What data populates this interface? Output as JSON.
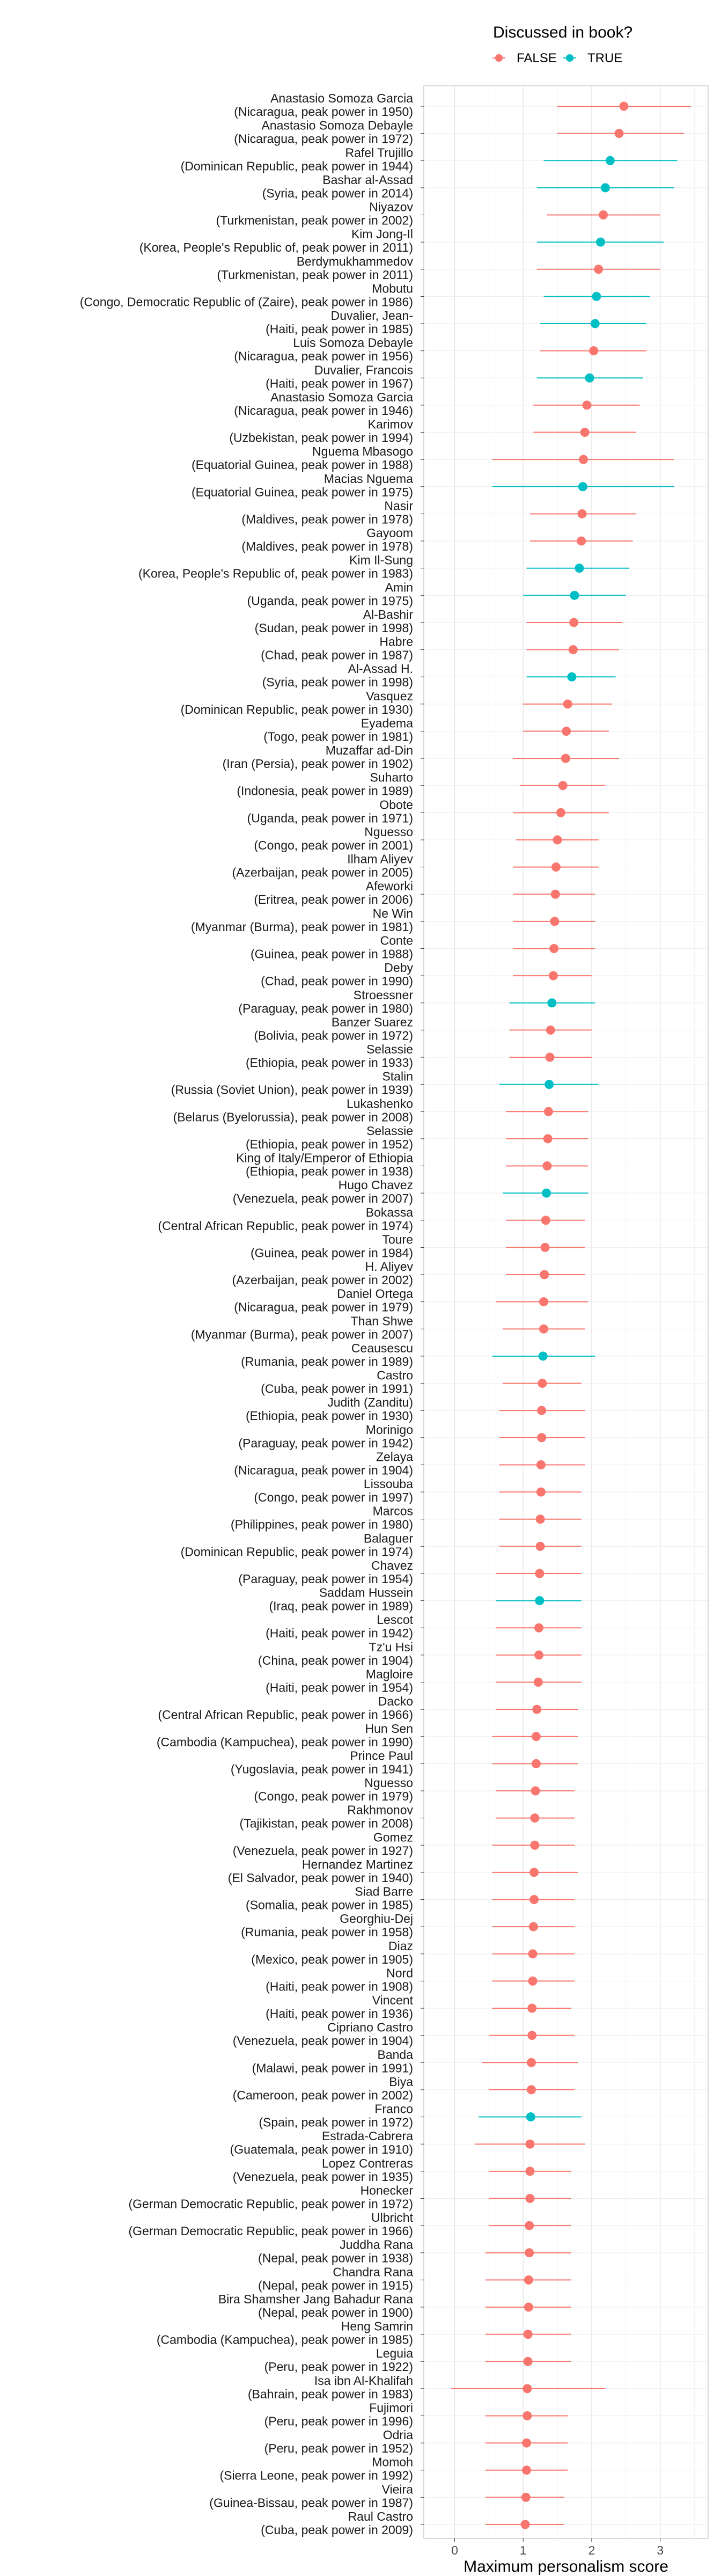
{
  "chart_data": {
    "type": "scatter",
    "xlabel": "Maximum personalism score",
    "ylabel": "",
    "xlim": [
      -0.45,
      3.7
    ],
    "xticks": [
      0,
      1,
      2,
      3
    ],
    "grid": true,
    "legend": {
      "title": "Discussed in book?",
      "position": "top",
      "entries": [
        {
          "name": "FALSE",
          "color": "#F8766D"
        },
        {
          "name": "TRUE",
          "color": "#00BFC4"
        }
      ]
    },
    "colors": {
      "FALSE": "#F8766D",
      "TRUE": "#00BFC4"
    },
    "points": [
      {
        "name": "Anastasio Somoza Garcia",
        "detail": "(Nicaragua, peak power in 1950)",
        "value": 2.47,
        "low": 1.5,
        "high": 3.45,
        "discussed": false
      },
      {
        "name": "Anastasio Somoza Debayle",
        "detail": "(Nicaragua, peak power in 1972)",
        "value": 2.4,
        "low": 1.5,
        "high": 3.35,
        "discussed": false
      },
      {
        "name": "Rafel Trujillo",
        "detail": "(Dominican Republic, peak power in 1944)",
        "value": 2.27,
        "low": 1.3,
        "high": 3.25,
        "discussed": true
      },
      {
        "name": "Bashar al-Assad",
        "detail": "(Syria, peak power in 2014)",
        "value": 2.2,
        "low": 1.2,
        "high": 3.2,
        "discussed": true
      },
      {
        "name": "Niyazov",
        "detail": "(Turkmenistan, peak power in 2002)",
        "value": 2.17,
        "low": 1.35,
        "high": 3.0,
        "discussed": false
      },
      {
        "name": "Kim Jong-Il",
        "detail": "(Korea, People's Republic of, peak power in 2011)",
        "value": 2.13,
        "low": 1.2,
        "high": 3.05,
        "discussed": true
      },
      {
        "name": "Berdymukhammedov",
        "detail": "(Turkmenistan, peak power in 2011)",
        "value": 2.1,
        "low": 1.2,
        "high": 3.0,
        "discussed": false
      },
      {
        "name": "Mobutu",
        "detail": "(Congo, Democratic Republic of (Zaire), peak power in 1986)",
        "value": 2.07,
        "low": 1.3,
        "high": 2.85,
        "discussed": true
      },
      {
        "name": "Duvalier, Jean-",
        "detail": "(Haiti, peak power in 1985)",
        "value": 2.05,
        "low": 1.25,
        "high": 2.8,
        "discussed": true
      },
      {
        "name": "Luis Somoza Debayle",
        "detail": "(Nicaragua, peak power in 1956)",
        "value": 2.03,
        "low": 1.25,
        "high": 2.8,
        "discussed": false
      },
      {
        "name": "Duvalier, Francois",
        "detail": "(Haiti, peak power in 1967)",
        "value": 1.97,
        "low": 1.2,
        "high": 2.75,
        "discussed": true
      },
      {
        "name": "Anastasio Somoza Garcia",
        "detail": "(Nicaragua, peak power in 1946)",
        "value": 1.93,
        "low": 1.15,
        "high": 2.7,
        "discussed": false
      },
      {
        "name": "Karimov",
        "detail": "(Uzbekistan, peak power in 1994)",
        "value": 1.9,
        "low": 1.15,
        "high": 2.65,
        "discussed": false
      },
      {
        "name": "Nguema Mbasogo",
        "detail": "(Equatorial Guinea, peak power in 1988)",
        "value": 1.88,
        "low": 0.55,
        "high": 3.2,
        "discussed": false
      },
      {
        "name": "Macias Nguema",
        "detail": "(Equatorial Guinea, peak power in 1975)",
        "value": 1.87,
        "low": 0.55,
        "high": 3.2,
        "discussed": true
      },
      {
        "name": "Nasir",
        "detail": "(Maldives, peak power in 1978)",
        "value": 1.86,
        "low": 1.1,
        "high": 2.65,
        "discussed": false
      },
      {
        "name": "Gayoom",
        "detail": "(Maldives, peak power in 1978)",
        "value": 1.85,
        "low": 1.1,
        "high": 2.6,
        "discussed": false
      },
      {
        "name": "Kim Il-Sung",
        "detail": "(Korea, People's Republic of, peak power in 1983)",
        "value": 1.82,
        "low": 1.05,
        "high": 2.55,
        "discussed": true
      },
      {
        "name": "Amin",
        "detail": "(Uganda, peak power in 1975)",
        "value": 1.75,
        "low": 1.0,
        "high": 2.5,
        "discussed": true
      },
      {
        "name": "Al-Bashir",
        "detail": "(Sudan, peak power in 1998)",
        "value": 1.74,
        "low": 1.05,
        "high": 2.45,
        "discussed": false
      },
      {
        "name": "Habre",
        "detail": "(Chad, peak power in 1987)",
        "value": 1.73,
        "low": 1.05,
        "high": 2.4,
        "discussed": false
      },
      {
        "name": "Al-Assad H.",
        "detail": "(Syria, peak power in 1998)",
        "value": 1.71,
        "low": 1.05,
        "high": 2.35,
        "discussed": true
      },
      {
        "name": "Vasquez",
        "detail": "(Dominican Republic, peak power in 1930)",
        "value": 1.65,
        "low": 1.0,
        "high": 2.3,
        "discussed": false
      },
      {
        "name": "Eyadema",
        "detail": "(Togo, peak power in 1981)",
        "value": 1.63,
        "low": 1.0,
        "high": 2.25,
        "discussed": false
      },
      {
        "name": "Muzaffar ad-Din",
        "detail": "(Iran (Persia), peak power in 1902)",
        "value": 1.62,
        "low": 0.85,
        "high": 2.4,
        "discussed": false
      },
      {
        "name": "Suharto",
        "detail": "(Indonesia, peak power in 1989)",
        "value": 1.58,
        "low": 0.95,
        "high": 2.2,
        "discussed": false
      },
      {
        "name": "Obote",
        "detail": "(Uganda, peak power in 1971)",
        "value": 1.55,
        "low": 0.85,
        "high": 2.25,
        "discussed": false
      },
      {
        "name": "Nguesso",
        "detail": "(Congo, peak power in 2001)",
        "value": 1.5,
        "low": 0.9,
        "high": 2.1,
        "discussed": false
      },
      {
        "name": "Ilham Aliyev",
        "detail": "(Azerbaijan, peak power in 2005)",
        "value": 1.48,
        "low": 0.85,
        "high": 2.1,
        "discussed": false
      },
      {
        "name": "Afeworki",
        "detail": "(Eritrea, peak power in 2006)",
        "value": 1.47,
        "low": 0.85,
        "high": 2.05,
        "discussed": false
      },
      {
        "name": "Ne Win",
        "detail": "(Myanmar (Burma), peak power in 1981)",
        "value": 1.46,
        "low": 0.85,
        "high": 2.05,
        "discussed": false
      },
      {
        "name": "Conte",
        "detail": "(Guinea, peak power in 1988)",
        "value": 1.45,
        "low": 0.85,
        "high": 2.05,
        "discussed": false
      },
      {
        "name": "Deby",
        "detail": "(Chad, peak power in 1990)",
        "value": 1.44,
        "low": 0.85,
        "high": 2.0,
        "discussed": false
      },
      {
        "name": "Stroessner",
        "detail": "(Paraguay, peak power in 1980)",
        "value": 1.42,
        "low": 0.8,
        "high": 2.05,
        "discussed": true
      },
      {
        "name": "Banzer Suarez",
        "detail": "(Bolivia, peak power in 1972)",
        "value": 1.4,
        "low": 0.8,
        "high": 2.0,
        "discussed": false
      },
      {
        "name": "Selassie",
        "detail": "(Ethiopia, peak power in 1933)",
        "value": 1.39,
        "low": 0.8,
        "high": 2.0,
        "discussed": false
      },
      {
        "name": "Stalin",
        "detail": "(Russia (Soviet Union), peak power in 1939)",
        "value": 1.38,
        "low": 0.65,
        "high": 2.1,
        "discussed": true
      },
      {
        "name": "Lukashenko",
        "detail": "(Belarus (Byelorussia), peak power in 2008)",
        "value": 1.37,
        "low": 0.75,
        "high": 1.95,
        "discussed": false
      },
      {
        "name": "Selassie",
        "detail": "(Ethiopia, peak power in 1952)",
        "value": 1.36,
        "low": 0.75,
        "high": 1.95,
        "discussed": false
      },
      {
        "name": "King of Italy/Emperor of Ethiopia",
        "detail": "(Ethiopia, peak power in 1938)",
        "value": 1.35,
        "low": 0.75,
        "high": 1.95,
        "discussed": false
      },
      {
        "name": "Hugo Chavez",
        "detail": "(Venezuela, peak power in 2007)",
        "value": 1.34,
        "low": 0.7,
        "high": 1.95,
        "discussed": true
      },
      {
        "name": "Bokassa",
        "detail": "(Central African Republic, peak power in 1974)",
        "value": 1.33,
        "low": 0.75,
        "high": 1.9,
        "discussed": false
      },
      {
        "name": "Toure",
        "detail": "(Guinea, peak power in 1984)",
        "value": 1.32,
        "low": 0.75,
        "high": 1.9,
        "discussed": false
      },
      {
        "name": "H. Aliyev",
        "detail": "(Azerbaijan, peak power in 2002)",
        "value": 1.31,
        "low": 0.75,
        "high": 1.9,
        "discussed": false
      },
      {
        "name": "Daniel Ortega",
        "detail": "(Nicaragua, peak power in 1979)",
        "value": 1.3,
        "low": 0.6,
        "high": 1.95,
        "discussed": false
      },
      {
        "name": "Than Shwe",
        "detail": "(Myanmar (Burma), peak power in 2007)",
        "value": 1.3,
        "low": 0.7,
        "high": 1.9,
        "discussed": false
      },
      {
        "name": "Ceausescu",
        "detail": "(Rumania, peak power in 1989)",
        "value": 1.29,
        "low": 0.55,
        "high": 2.05,
        "discussed": true
      },
      {
        "name": "Castro",
        "detail": "(Cuba, peak power in 1991)",
        "value": 1.28,
        "low": 0.7,
        "high": 1.85,
        "discussed": false
      },
      {
        "name": "Judith (Zanditu)",
        "detail": "(Ethiopia, peak power in 1930)",
        "value": 1.27,
        "low": 0.65,
        "high": 1.9,
        "discussed": false
      },
      {
        "name": "Morinigo",
        "detail": "(Paraguay, peak power in 1942)",
        "value": 1.27,
        "low": 0.65,
        "high": 1.9,
        "discussed": false
      },
      {
        "name": "Zelaya",
        "detail": "(Nicaragua, peak power in 1904)",
        "value": 1.26,
        "low": 0.65,
        "high": 1.9,
        "discussed": false
      },
      {
        "name": "Lissouba",
        "detail": "(Congo, peak power in 1997)",
        "value": 1.26,
        "low": 0.65,
        "high": 1.85,
        "discussed": false
      },
      {
        "name": "Marcos",
        "detail": "(Philippines, peak power in 1980)",
        "value": 1.25,
        "low": 0.65,
        "high": 1.85,
        "discussed": false
      },
      {
        "name": "Balaguer",
        "detail": "(Dominican Republic, peak power in 1974)",
        "value": 1.25,
        "low": 0.65,
        "high": 1.85,
        "discussed": false
      },
      {
        "name": "Chavez",
        "detail": "(Paraguay, peak power in 1954)",
        "value": 1.24,
        "low": 0.6,
        "high": 1.85,
        "discussed": false
      },
      {
        "name": "Saddam Hussein",
        "detail": "(Iraq, peak power in 1989)",
        "value": 1.24,
        "low": 0.6,
        "high": 1.85,
        "discussed": true
      },
      {
        "name": "Lescot",
        "detail": "(Haiti, peak power in 1942)",
        "value": 1.23,
        "low": 0.6,
        "high": 1.85,
        "discussed": false
      },
      {
        "name": "Tz'u Hsi",
        "detail": "(China, peak power in 1904)",
        "value": 1.23,
        "low": 0.6,
        "high": 1.85,
        "discussed": false
      },
      {
        "name": "Magloire",
        "detail": "(Haiti, peak power in 1954)",
        "value": 1.22,
        "low": 0.6,
        "high": 1.85,
        "discussed": false
      },
      {
        "name": "Dacko",
        "detail": "(Central African Republic, peak power in 1966)",
        "value": 1.2,
        "low": 0.6,
        "high": 1.8,
        "discussed": false
      },
      {
        "name": "Hun Sen",
        "detail": "(Cambodia (Kampuchea), peak power in 1990)",
        "value": 1.19,
        "low": 0.55,
        "high": 1.8,
        "discussed": false
      },
      {
        "name": "Prince Paul",
        "detail": "(Yugoslavia, peak power in 1941)",
        "value": 1.19,
        "low": 0.55,
        "high": 1.8,
        "discussed": false
      },
      {
        "name": "Nguesso",
        "detail": "(Congo, peak power in 1979)",
        "value": 1.18,
        "low": 0.6,
        "high": 1.75,
        "discussed": false
      },
      {
        "name": "Rakhmonov",
        "detail": "(Tajikistan, peak power in 2008)",
        "value": 1.17,
        "low": 0.6,
        "high": 1.75,
        "discussed": false
      },
      {
        "name": "Gomez",
        "detail": "(Venezuela, peak power in 1927)",
        "value": 1.17,
        "low": 0.55,
        "high": 1.75,
        "discussed": false
      },
      {
        "name": "Hernandez Martinez",
        "detail": "(El Salvador, peak power in 1940)",
        "value": 1.16,
        "low": 0.55,
        "high": 1.8,
        "discussed": false
      },
      {
        "name": "Siad Barre",
        "detail": "(Somalia, peak power in 1985)",
        "value": 1.16,
        "low": 0.55,
        "high": 1.75,
        "discussed": false
      },
      {
        "name": "Georghiu-Dej",
        "detail": "(Rumania, peak power in 1958)",
        "value": 1.15,
        "low": 0.55,
        "high": 1.75,
        "discussed": false
      },
      {
        "name": "Diaz",
        "detail": "(Mexico, peak power in 1905)",
        "value": 1.14,
        "low": 0.55,
        "high": 1.75,
        "discussed": false
      },
      {
        "name": "Nord",
        "detail": "(Haiti, peak power in 1908)",
        "value": 1.14,
        "low": 0.55,
        "high": 1.75,
        "discussed": false
      },
      {
        "name": "Vincent",
        "detail": "(Haiti, peak power in 1936)",
        "value": 1.13,
        "low": 0.55,
        "high": 1.7,
        "discussed": false
      },
      {
        "name": "Cipriano Castro",
        "detail": "(Venezuela, peak power in 1904)",
        "value": 1.13,
        "low": 0.5,
        "high": 1.75,
        "discussed": false
      },
      {
        "name": "Banda",
        "detail": "(Malawi, peak power in 1991)",
        "value": 1.12,
        "low": 0.4,
        "high": 1.8,
        "discussed": false
      },
      {
        "name": "Biya",
        "detail": "(Cameroon, peak power in 2002)",
        "value": 1.12,
        "low": 0.5,
        "high": 1.75,
        "discussed": false
      },
      {
        "name": "Franco",
        "detail": "(Spain, peak power in 1972)",
        "value": 1.11,
        "low": 0.35,
        "high": 1.85,
        "discussed": true
      },
      {
        "name": "Estrada-Cabrera",
        "detail": "(Guatemala, peak power in 1910)",
        "value": 1.1,
        "low": 0.3,
        "high": 1.9,
        "discussed": false
      },
      {
        "name": "Lopez Contreras",
        "detail": "(Venezuela, peak power in 1935)",
        "value": 1.1,
        "low": 0.5,
        "high": 1.7,
        "discussed": false
      },
      {
        "name": "Honecker",
        "detail": "(German Democratic Republic, peak power in 1972)",
        "value": 1.1,
        "low": 0.5,
        "high": 1.7,
        "discussed": false
      },
      {
        "name": "Ulbricht",
        "detail": "(German Democratic Republic, peak power in 1966)",
        "value": 1.09,
        "low": 0.5,
        "high": 1.7,
        "discussed": false
      },
      {
        "name": "Juddha Rana",
        "detail": "(Nepal, peak power in 1938)",
        "value": 1.09,
        "low": 0.45,
        "high": 1.7,
        "discussed": false
      },
      {
        "name": "Chandra Rana",
        "detail": "(Nepal, peak power in 1915)",
        "value": 1.08,
        "low": 0.45,
        "high": 1.7,
        "discussed": false
      },
      {
        "name": "Bira Shamsher Jang Bahadur Rana",
        "detail": "(Nepal, peak power in 1900)",
        "value": 1.08,
        "low": 0.45,
        "high": 1.7,
        "discussed": false
      },
      {
        "name": "Heng Samrin",
        "detail": "(Cambodia (Kampuchea), peak power in 1985)",
        "value": 1.07,
        "low": 0.45,
        "high": 1.7,
        "discussed": false
      },
      {
        "name": "Leguia",
        "detail": "(Peru, peak power in 1922)",
        "value": 1.07,
        "low": 0.45,
        "high": 1.7,
        "discussed": false
      },
      {
        "name": "Isa ibn Al-Khalifah",
        "detail": "(Bahrain, peak power in 1983)",
        "value": 1.06,
        "low": -0.05,
        "high": 2.2,
        "discussed": false
      },
      {
        "name": "Fujimori",
        "detail": "(Peru, peak power in 1996)",
        "value": 1.06,
        "low": 0.45,
        "high": 1.65,
        "discussed": false
      },
      {
        "name": "Odria",
        "detail": "(Peru, peak power in 1952)",
        "value": 1.05,
        "low": 0.45,
        "high": 1.65,
        "discussed": false
      },
      {
        "name": "Momoh",
        "detail": "(Sierra Leone, peak power in 1992)",
        "value": 1.05,
        "low": 0.45,
        "high": 1.65,
        "discussed": false
      },
      {
        "name": "Vieira",
        "detail": "(Guinea-Bissau, peak power in 1987)",
        "value": 1.04,
        "low": 0.45,
        "high": 1.6,
        "discussed": false
      },
      {
        "name": "Raul Castro",
        "detail": "(Cuba, peak power in 2009)",
        "value": 1.03,
        "low": 0.45,
        "high": 1.6,
        "discussed": false
      }
    ]
  }
}
